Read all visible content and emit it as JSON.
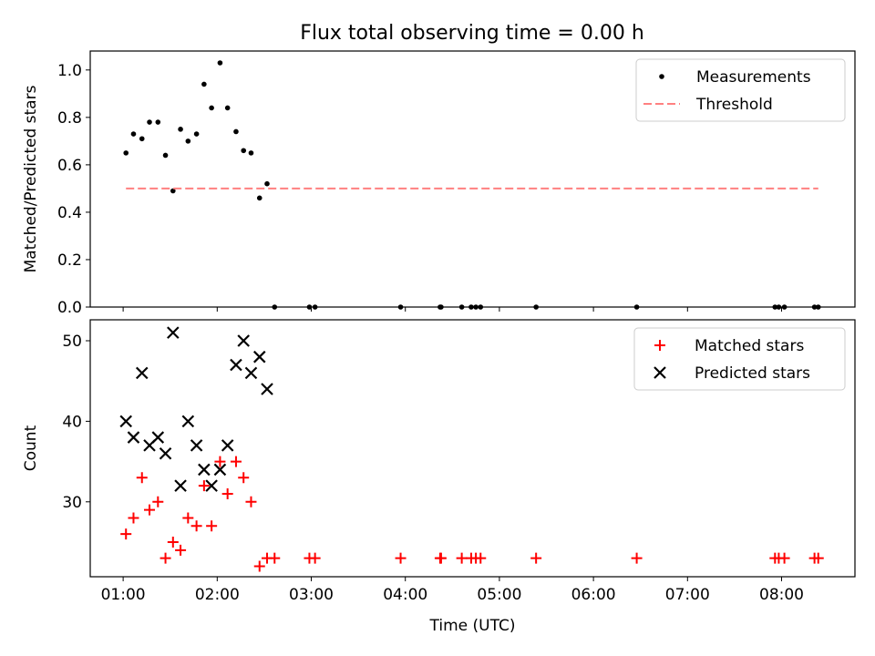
{
  "title": "Flux total observing time = 0.00 h",
  "chart_data": [
    {
      "type": "scatter",
      "ylabel": "Matched/Predicted stars",
      "xlim": [
        0.65,
        8.78
      ],
      "ylim": [
        0,
        1.08
      ],
      "yticks": [
        0.0,
        0.2,
        0.4,
        0.6,
        0.8,
        1.0
      ],
      "ytick_labels": [
        "0.0",
        "0.2",
        "0.4",
        "0.6",
        "0.8",
        "1.0"
      ],
      "legend_position": "top-right",
      "series": [
        {
          "name": "Measurements",
          "marker": "dot",
          "color": "#000000",
          "x": [
            1.03,
            1.11,
            1.2,
            1.28,
            1.37,
            1.45,
            1.53,
            1.61,
            1.69,
            1.78,
            1.86,
            1.94,
            2.03,
            2.11,
            2.2,
            2.28,
            2.36,
            2.45,
            2.53,
            2.61,
            2.98,
            3.04,
            3.95,
            4.37,
            4.38,
            4.6,
            4.7,
            4.75,
            4.8,
            5.39,
            6.46,
            7.93,
            7.97,
            8.03,
            8.35,
            8.39
          ],
          "y": [
            0.65,
            0.73,
            0.71,
            0.78,
            0.78,
            0.64,
            0.49,
            0.75,
            0.7,
            0.73,
            0.94,
            0.84,
            1.03,
            0.84,
            0.74,
            0.66,
            0.65,
            0.46,
            0.52,
            0,
            0,
            0,
            0,
            0,
            0,
            0,
            0,
            0,
            0,
            0,
            0,
            0,
            0,
            0,
            0,
            0
          ]
        },
        {
          "name": "Threshold",
          "marker": "dashed-line",
          "color": "#ff8080",
          "x": [
            1.03,
            8.39
          ],
          "y": [
            0.5,
            0.5
          ]
        }
      ]
    },
    {
      "type": "scatter",
      "xlabel": "Time (UTC)",
      "ylabel": "Count",
      "xlim": [
        0.65,
        8.78
      ],
      "ylim": [
        20.7,
        52.6
      ],
      "yticks": [
        30,
        40,
        50
      ],
      "ytick_labels": [
        "30",
        "40",
        "50"
      ],
      "xticks": [
        1,
        2,
        3,
        4,
        5,
        6,
        7,
        8
      ],
      "xtick_labels": [
        "01:00",
        "02:00",
        "03:00",
        "04:00",
        "05:00",
        "06:00",
        "07:00",
        "08:00"
      ],
      "legend_position": "top-right",
      "series": [
        {
          "name": "Matched stars",
          "marker": "plus",
          "color": "#ff0000",
          "x": [
            1.03,
            1.11,
            1.2,
            1.28,
            1.37,
            1.45,
            1.53,
            1.61,
            1.69,
            1.78,
            1.86,
            1.94,
            2.03,
            2.11,
            2.2,
            2.28,
            2.36,
            2.45,
            2.53,
            2.61,
            2.98,
            3.04,
            3.95,
            4.37,
            4.38,
            4.6,
            4.7,
            4.75,
            4.8,
            5.39,
            6.46,
            7.93,
            7.97,
            8.03,
            8.35,
            8.39
          ],
          "y": [
            26,
            28,
            33,
            29,
            30,
            23,
            25,
            24,
            28,
            27,
            32,
            27,
            35,
            31,
            35,
            33,
            30,
            22,
            23,
            23,
            23,
            23,
            23,
            23,
            23,
            23,
            23,
            23,
            23,
            23,
            23,
            23,
            23,
            23,
            23,
            23
          ]
        },
        {
          "name": "Predicted stars",
          "marker": "x",
          "color": "#000000",
          "x": [
            1.03,
            1.11,
            1.2,
            1.28,
            1.37,
            1.45,
            1.53,
            1.61,
            1.69,
            1.78,
            1.86,
            1.94,
            2.03,
            2.11,
            2.2,
            2.28,
            2.36,
            2.45,
            2.53
          ],
          "y": [
            40,
            38,
            46,
            37,
            38,
            36,
            51,
            32,
            40,
            37,
            34,
            32,
            34,
            37,
            47,
            50,
            46,
            48,
            44
          ]
        }
      ]
    }
  ]
}
